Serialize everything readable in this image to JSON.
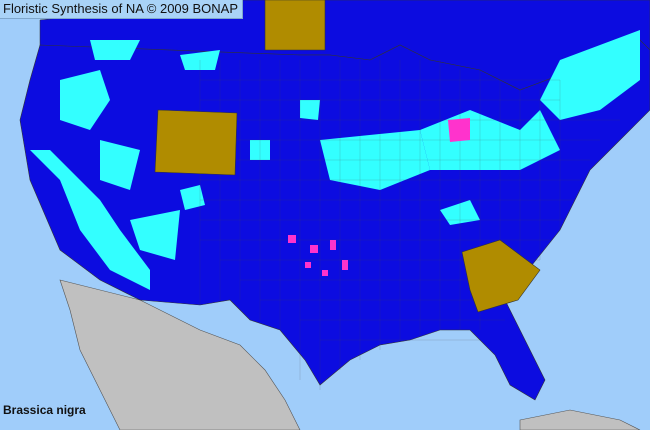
{
  "header": {
    "title": "Floristic Synthesis of NA © 2009 BONAP"
  },
  "species": {
    "name": "Brassica nigra"
  },
  "colors": {
    "ocean": "#a0cdfa",
    "land_present_county": "#0c0ce0",
    "species_present_county": "#33ffff",
    "species_present_state": "#b08c00",
    "noxious_or_rare": "#ff33cc",
    "outside_area": "#c0c0c0",
    "county_borders": "#444"
  }
}
